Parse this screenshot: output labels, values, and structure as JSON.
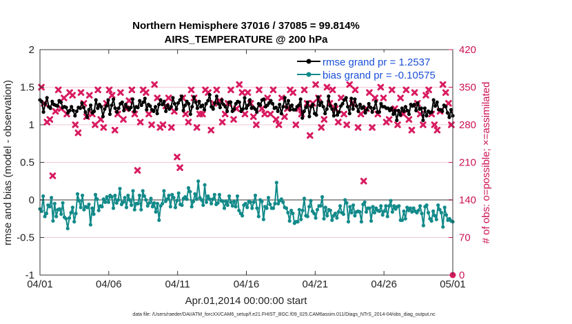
{
  "chart_data": {
    "type": "line",
    "title": "Northern Hemisphere 37016 / 37085 = 99.814%",
    "subtitle": "AIRS_TEMPERATURE @ 200 hPa",
    "xlabel": "Apr.01,2014 00:00:00 start",
    "ylabel": "rmse and bias (model - observation)",
    "y2label": "# of obs: o=possible; ×=assimilated",
    "x_ticks": [
      "04/01",
      "04/06",
      "04/11",
      "04/16",
      "04/21",
      "04/26",
      "05/01"
    ],
    "x_range_days": [
      0,
      30
    ],
    "ylim": [
      -1,
      2
    ],
    "y_ticks": [
      "-1",
      "-0.5",
      "0",
      "0.5",
      "1",
      "1.5",
      "2"
    ],
    "y2lim": [
      0,
      420
    ],
    "y2_ticks": [
      "0",
      "70",
      "140",
      "210",
      "280",
      "350",
      "420"
    ],
    "zero_line": 0,
    "footnote": "data file: /Users/raeder/DAI/ATM_forcXX/CAM6_setup/f.e21.FHIST_BGC.f09_025.CAM6assim.011/Diags_NTrS_2014-04/obs_diag_output.nc",
    "colors": {
      "rmse": "#000000",
      "bias": "#138a8a",
      "obs": "#d81b60",
      "grid": "#e9b6c8",
      "zero": "#999999"
    },
    "series": [
      {
        "name": "rmse grand pr = 1.2537",
        "axis": "left",
        "values": [
          1.33,
          1.31,
          1.17,
          1.28,
          1.36,
          1.24,
          1.22,
          1.31,
          1.27,
          1.26,
          1.25,
          1.32,
          1.3,
          1.23,
          1.24,
          1.23,
          1.16,
          1.19,
          1.24,
          1.19,
          1.12,
          1.18,
          1.23,
          1.22,
          1.29,
          1.23,
          1.17,
          1.1,
          1.2,
          1.26,
          1.16,
          1.18,
          1.33,
          1.22,
          1.27,
          1.24,
          1.11,
          1.21,
          1.25,
          1.33,
          1.14,
          1.26,
          1.34,
          1.22,
          1.17,
          1.22,
          1.28,
          1.3,
          1.19,
          1.27,
          1.23,
          1.2,
          1.23,
          1.34,
          1.18,
          1.24,
          1.23,
          1.32,
          1.26,
          1.3,
          1.35,
          1.2,
          1.27,
          1.25,
          1.2,
          1.18,
          1.24,
          1.15,
          1.27,
          1.33,
          1.27,
          1.31,
          1.18,
          1.26,
          1.21,
          1.24,
          1.36,
          1.28,
          1.21,
          1.29,
          1.33,
          1.38,
          1.19,
          1.26,
          1.31,
          1.28,
          1.14,
          1.24,
          1.37,
          1.3,
          1.22,
          1.31,
          1.24,
          1.26,
          1.2,
          1.28,
          1.32,
          1.4,
          1.24,
          1.21,
          1.29,
          1.38,
          1.28,
          1.23,
          1.33,
          1.27,
          1.24,
          1.18,
          1.3,
          1.3,
          1.18,
          1.21,
          1.28,
          1.31,
          1.3,
          1.18,
          1.21,
          1.36,
          1.22,
          1.26,
          1.33,
          1.22,
          1.23,
          1.21,
          1.17,
          1.28,
          1.26,
          1.33,
          1.34,
          1.24,
          1.26,
          1.29,
          1.32,
          1.28,
          1.22,
          1.23,
          1.18,
          1.27,
          1.15,
          1.24,
          1.36,
          1.23,
          1.32,
          1.2,
          1.26,
          1.2,
          1.2,
          1.24,
          1.26,
          1.34,
          1.09,
          1.18,
          1.23,
          1.3,
          1.11,
          1.24,
          1.27,
          1.15,
          1.13,
          1.37,
          1.26,
          1.3,
          1.24,
          1.15,
          1.21,
          1.38,
          1.25,
          1.21,
          1.12,
          1.27,
          1.13,
          1.17,
          1.25,
          1.28,
          1.33,
          1.36,
          1.24,
          1.15,
          1.35,
          1.21,
          1.34,
          1.25,
          1.18,
          1.27,
          1.22,
          1.24,
          1.16,
          1.2,
          1.28,
          1.23,
          1.17,
          1.22,
          1.31,
          1.17,
          1.17,
          1.28,
          1.24,
          1.24,
          1.22,
          1.22,
          1.19,
          1.22,
          1.14,
          1.19,
          1.06,
          1.19,
          1.13,
          1.22,
          1.18,
          1.24,
          1.19,
          1.14,
          1.27,
          1.25,
          1.27,
          1.19,
          1.29,
          1.21,
          1.22,
          1.06,
          1.22,
          1.12,
          1.18,
          1.16,
          1.17,
          1.33,
          1.25,
          1.3,
          1.2,
          1.2,
          1.18,
          1.26,
          1.24,
          1.16,
          1.1,
          1.2,
          1.12
        ]
      },
      {
        "name": "bias grand pr = -0.10575",
        "axis": "left",
        "values": [
          -0.12,
          -0.15,
          0.05,
          -0.22,
          -0.18,
          -0.07,
          -0.09,
          0.03,
          -0.28,
          -0.05,
          -0.22,
          -0.13,
          -0.12,
          -0.19,
          -0.04,
          -0.23,
          -0.25,
          -0.38,
          -0.24,
          -0.17,
          -0.1,
          -0.29,
          -0.18,
          0.08,
          -0.01,
          -0.1,
          0.06,
          -0.13,
          -0.09,
          -0.1,
          -0.06,
          -0.33,
          -0.11,
          -0.19,
          0.07,
          0.01,
          -0.14,
          -0.08,
          -0.09,
          0.01,
          -0.03,
          0.04,
          -0.03,
          0.06,
          0.04,
          -0.11,
          0.06,
          -0.04,
          0.0,
          0.15,
          -0.06,
          -0.03,
          0.03,
          -0.1,
          0.06,
          0.0,
          -0.07,
          0.12,
          -0.13,
          -0.05,
          -0.05,
          0.06,
          -0.13,
          0.12,
          0.05,
          0.0,
          -0.08,
          -0.04,
          0.02,
          -0.09,
          -0.04,
          -0.16,
          -0.05,
          -0.27,
          -0.08,
          -0.05,
          0.12,
          -0.02,
          0.01,
          0.06,
          -0.09,
          0.07,
          0.03,
          -0.1,
          -0.01,
          0.09,
          -0.06,
          -0.07,
          0.02,
          0.04,
          0.01,
          0.16,
          0.11,
          -0.09,
          -0.02,
          0.08,
          0.01,
          0.25,
          0.03,
          0.0,
          -0.07,
          0.2,
          -0.03,
          0.05,
          0.01,
          -0.05,
          0.01,
          0.07,
          -0.06,
          -0.04,
          0.07,
          -0.01,
          -0.02,
          -0.11,
          -0.02,
          -0.07,
          0.05,
          -0.03,
          -0.08,
          -0.02,
          -0.09,
          0.05,
          -0.14,
          -0.18,
          -0.21,
          -0.07,
          -0.05,
          -0.1,
          -0.02,
          -0.03,
          -0.11,
          -0.03,
          0.06,
          -0.11,
          -0.22,
          0.0,
          -0.02,
          -0.26,
          -0.09,
          -0.11,
          0.03,
          -0.06,
          -0.11,
          -0.11,
          -0.05,
          0.23,
          -0.05,
          -0.01,
          0.01,
          -0.03,
          -0.1,
          -0.11,
          -0.17,
          -0.28,
          -0.14,
          -0.18,
          -0.31,
          -0.29,
          -0.29,
          -0.13,
          -0.26,
          -0.14,
          0.02,
          -0.21,
          -0.22,
          -0.09,
          -0.01,
          -0.15,
          -0.18,
          -0.24,
          -0.13,
          -0.08,
          -0.08,
          0.04,
          -0.25,
          -0.1,
          -0.21,
          -0.13,
          -0.14,
          -0.27,
          -0.21,
          -0.18,
          -0.24,
          -0.16,
          -0.08,
          -0.17,
          -0.19,
          0.0,
          -0.04,
          -0.29,
          -0.09,
          -0.17,
          -0.07,
          -0.21,
          -0.16,
          -0.15,
          -0.16,
          -0.29,
          -0.06,
          -0.03,
          -0.16,
          -0.11,
          -0.11,
          -0.28,
          -0.09,
          -0.17,
          -0.11,
          -0.14,
          -0.15,
          -0.08,
          -0.2,
          -0.15,
          -0.08,
          -0.22,
          -0.08,
          -0.01,
          -0.16,
          -0.08,
          -0.12,
          -0.09,
          -0.08,
          -0.27,
          -0.27,
          -0.15,
          -0.25,
          -0.1,
          -0.14,
          -0.11,
          -0.16,
          -0.11,
          -0.15,
          -0.17,
          -0.14,
          -0.08,
          -0.18,
          -0.34,
          -0.09,
          -0.07,
          -0.17,
          -0.25,
          -0.28,
          -0.15,
          -0.21,
          -0.26,
          -0.07,
          -0.13,
          -0.17,
          -0.36,
          -0.1,
          -0.2,
          -0.27,
          -0.25,
          -0.28,
          -0.29
        ]
      },
      {
        "name": "# of obs assimilated",
        "axis": "right",
        "marker": "x",
        "values": [
          350,
          320,
          285,
          290,
          185,
          305,
          345,
          310,
          330,
          300,
          340,
          335,
          280,
          265,
          340,
          320,
          295,
          335,
          300,
          280,
          345,
          290,
          275,
          320,
          345,
          335,
          270,
          300,
          340,
          290,
          310,
          325,
          345,
          300,
          195,
          285,
          345,
          340,
          300,
          280,
          355,
          330,
          275,
          280,
          315,
          330,
          275,
          305,
          220,
          200,
          330,
          300,
          285,
          345,
          330,
          275,
          300,
          300,
          345,
          340,
          270,
          320,
          345,
          325,
          285,
          300,
          320,
          345,
          290,
          310,
          355,
          340,
          300,
          340,
          320,
          295,
          280,
          345,
          310,
          300,
          330,
          300,
          345,
          290,
          280,
          330,
          295,
          310,
          345,
          340,
          280,
          310,
          300,
          345,
          320,
          260,
          320,
          355,
          330,
          275,
          290,
          350,
          320,
          345,
          310,
          285,
          330,
          300,
          280,
          355,
          320,
          345,
          275,
          300,
          175,
          310,
          340,
          275,
          330,
          300,
          350,
          330,
          285,
          290,
          345,
          310,
          280,
          330,
          300,
          345,
          290,
          270,
          340,
          320,
          300,
          280,
          335,
          345,
          300,
          280,
          270,
          305,
          355,
          340,
          320,
          280
        ]
      },
      {
        "name": "# of obs possible",
        "axis": "right",
        "marker": "o",
        "values": [
          0
        ]
      }
    ]
  }
}
